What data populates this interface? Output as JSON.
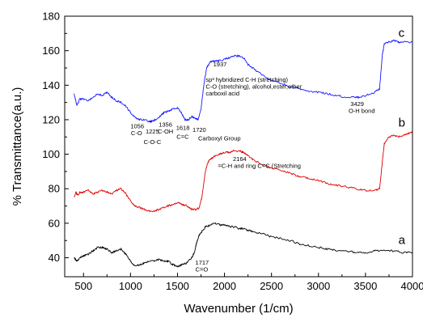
{
  "chart_data": {
    "type": "line",
    "xlabel": "Wavenumber (1/cm)",
    "ylabel": "% Transmittance(a.u.)",
    "xlim": [
      300,
      4000
    ],
    "ylim": [
      29,
      180
    ],
    "x_ticks": [
      500,
      1000,
      1500,
      2000,
      2500,
      3000,
      3500,
      4000
    ],
    "y_ticks": [
      40,
      60,
      80,
      100,
      120,
      140,
      160,
      180
    ],
    "grid": false,
    "series": [
      {
        "name": "c",
        "color": "#1a1aff",
        "points": [
          [
            400,
            135
          ],
          [
            430,
            128
          ],
          [
            460,
            132
          ],
          [
            500,
            132
          ],
          [
            550,
            131
          ],
          [
            600,
            133
          ],
          [
            650,
            135
          ],
          [
            700,
            134
          ],
          [
            750,
            136
          ],
          [
            800,
            133
          ],
          [
            850,
            131
          ],
          [
            900,
            130
          ],
          [
            950,
            128
          ],
          [
            1000,
            124
          ],
          [
            1056,
            121
          ],
          [
            1100,
            120
          ],
          [
            1150,
            120
          ],
          [
            1200,
            119
          ],
          [
            1225,
            119
          ],
          [
            1260,
            120
          ],
          [
            1300,
            121
          ],
          [
            1330,
            123
          ],
          [
            1356,
            124
          ],
          [
            1400,
            125
          ],
          [
            1450,
            126
          ],
          [
            1500,
            127
          ],
          [
            1540,
            124
          ],
          [
            1580,
            120
          ],
          [
            1618,
            120
          ],
          [
            1650,
            122
          ],
          [
            1680,
            121
          ],
          [
            1720,
            120
          ],
          [
            1750,
            126
          ],
          [
            1780,
            140
          ],
          [
            1810,
            150
          ],
          [
            1840,
            153
          ],
          [
            1870,
            154
          ],
          [
            1900,
            154
          ],
          [
            1937,
            154
          ],
          [
            2000,
            155
          ],
          [
            2050,
            156
          ],
          [
            2100,
            157
          ],
          [
            2150,
            157
          ],
          [
            2200,
            156
          ],
          [
            2250,
            152
          ],
          [
            2300,
            150
          ],
          [
            2400,
            146
          ],
          [
            2500,
            143
          ],
          [
            2600,
            141
          ],
          [
            2700,
            139
          ],
          [
            2800,
            138
          ],
          [
            2900,
            136
          ],
          [
            3000,
            136
          ],
          [
            3100,
            135
          ],
          [
            3200,
            134
          ],
          [
            3300,
            133
          ],
          [
            3400,
            133
          ],
          [
            3429,
            133
          ],
          [
            3500,
            134
          ],
          [
            3600,
            136
          ],
          [
            3650,
            138
          ],
          [
            3680,
            158
          ],
          [
            3700,
            164
          ],
          [
            3750,
            165
          ],
          [
            3800,
            166
          ],
          [
            3850,
            165
          ],
          [
            3900,
            165
          ],
          [
            4000,
            165
          ]
        ]
      },
      {
        "name": "b",
        "color": "#e00000",
        "points": [
          [
            400,
            75
          ],
          [
            420,
            78
          ],
          [
            440,
            76
          ],
          [
            460,
            78
          ],
          [
            500,
            78
          ],
          [
            550,
            79
          ],
          [
            600,
            77
          ],
          [
            650,
            78
          ],
          [
            700,
            79
          ],
          [
            750,
            78
          ],
          [
            800,
            77
          ],
          [
            850,
            79
          ],
          [
            900,
            80
          ],
          [
            950,
            77
          ],
          [
            1000,
            73
          ],
          [
            1050,
            70
          ],
          [
            1100,
            69
          ],
          [
            1150,
            68
          ],
          [
            1200,
            67
          ],
          [
            1250,
            67
          ],
          [
            1300,
            68
          ],
          [
            1350,
            69
          ],
          [
            1400,
            70
          ],
          [
            1450,
            71
          ],
          [
            1500,
            72
          ],
          [
            1550,
            71
          ],
          [
            1600,
            70
          ],
          [
            1650,
            68
          ],
          [
            1700,
            68
          ],
          [
            1730,
            69
          ],
          [
            1760,
            75
          ],
          [
            1790,
            88
          ],
          [
            1820,
            95
          ],
          [
            1850,
            97
          ],
          [
            1900,
            99
          ],
          [
            1950,
            100
          ],
          [
            2000,
            101
          ],
          [
            2050,
            101
          ],
          [
            2100,
            102
          ],
          [
            2164,
            102
          ],
          [
            2200,
            101
          ],
          [
            2250,
            99
          ],
          [
            2300,
            97
          ],
          [
            2400,
            94
          ],
          [
            2500,
            92
          ],
          [
            2600,
            91
          ],
          [
            2700,
            89
          ],
          [
            2800,
            87
          ],
          [
            2900,
            86
          ],
          [
            3000,
            85
          ],
          [
            3100,
            83
          ],
          [
            3200,
            82
          ],
          [
            3300,
            81
          ],
          [
            3400,
            80
          ],
          [
            3500,
            79
          ],
          [
            3600,
            79
          ],
          [
            3650,
            80
          ],
          [
            3680,
            96
          ],
          [
            3700,
            106
          ],
          [
            3750,
            110
          ],
          [
            3800,
            111
          ],
          [
            3850,
            110
          ],
          [
            3900,
            111
          ],
          [
            3950,
            112
          ],
          [
            4000,
            113
          ]
        ]
      },
      {
        "name": "a",
        "color": "#000000",
        "points": [
          [
            400,
            40
          ],
          [
            430,
            38
          ],
          [
            460,
            40
          ],
          [
            500,
            41
          ],
          [
            550,
            42
          ],
          [
            600,
            44
          ],
          [
            650,
            46
          ],
          [
            700,
            46
          ],
          [
            750,
            45
          ],
          [
            800,
            43
          ],
          [
            850,
            44
          ],
          [
            900,
            45
          ],
          [
            950,
            42
          ],
          [
            1000,
            38
          ],
          [
            1050,
            35
          ],
          [
            1100,
            36
          ],
          [
            1150,
            37
          ],
          [
            1200,
            38
          ],
          [
            1250,
            38
          ],
          [
            1300,
            39
          ],
          [
            1350,
            38
          ],
          [
            1400,
            38
          ],
          [
            1450,
            36
          ],
          [
            1500,
            35
          ],
          [
            1550,
            36
          ],
          [
            1600,
            37
          ],
          [
            1650,
            40
          ],
          [
            1680,
            43
          ],
          [
            1700,
            48
          ],
          [
            1717,
            51
          ],
          [
            1740,
            54
          ],
          [
            1770,
            56
          ],
          [
            1800,
            58
          ],
          [
            1850,
            59
          ],
          [
            1900,
            60
          ],
          [
            1950,
            59
          ],
          [
            2000,
            59
          ],
          [
            2050,
            58
          ],
          [
            2100,
            58
          ],
          [
            2150,
            57
          ],
          [
            2200,
            57
          ],
          [
            2250,
            56
          ],
          [
            2300,
            55
          ],
          [
            2400,
            54
          ],
          [
            2500,
            52
          ],
          [
            2600,
            51
          ],
          [
            2700,
            50
          ],
          [
            2800,
            48
          ],
          [
            2900,
            47
          ],
          [
            3000,
            46
          ],
          [
            3100,
            45
          ],
          [
            3200,
            44
          ],
          [
            3300,
            44
          ],
          [
            3400,
            43
          ],
          [
            3500,
            43
          ],
          [
            3600,
            44
          ],
          [
            3700,
            44
          ],
          [
            3800,
            44
          ],
          [
            3900,
            43
          ],
          [
            4000,
            43
          ]
        ]
      }
    ],
    "series_labels": [
      {
        "text": "c",
        "x": 3850,
        "y": 168
      },
      {
        "text": "b",
        "x": 3850,
        "y": 116
      },
      {
        "text": "a",
        "x": 3850,
        "y": 48
      }
    ],
    "annotations": [
      {
        "text": "1056",
        "x": 1000,
        "y": 115
      },
      {
        "text": "C-O",
        "x": 1005,
        "y": 111
      },
      {
        "text": "1225",
        "x": 1160,
        "y": 112
      },
      {
        "text": "C-O-C",
        "x": 1140,
        "y": 106
      },
      {
        "text": "1356",
        "x": 1300,
        "y": 116
      },
      {
        "text": "C-OH",
        "x": 1290,
        "y": 112
      },
      {
        "text": "1618",
        "x": 1485,
        "y": 114
      },
      {
        "text": "C=C",
        "x": 1490,
        "y": 109
      },
      {
        "text": "1720",
        "x": 1660,
        "y": 113
      },
      {
        "text": "Carboxyl Group",
        "x": 1720,
        "y": 108
      },
      {
        "text": "1937",
        "x": 1880,
        "y": 151
      },
      {
        "text": "sp³ hybridized C-H (stretching)",
        "x": 1800,
        "y": 142
      },
      {
        "text": "C-O (stretching), alcohol,ester,ether",
        "x": 1800,
        "y": 138
      },
      {
        "text": "carboxil acid",
        "x": 1800,
        "y": 134
      },
      {
        "text": "3429",
        "x": 3340,
        "y": 128
      },
      {
        "text": "O-H bond",
        "x": 3320,
        "y": 124
      },
      {
        "text": "2164",
        "x": 2090,
        "y": 96
      },
      {
        "text": "=C-H and ring C=C (Stretching",
        "x": 1930,
        "y": 92
      },
      {
        "text": "1717",
        "x": 1690,
        "y": 36
      },
      {
        "text": "C=O",
        "x": 1690,
        "y": 32
      }
    ]
  }
}
